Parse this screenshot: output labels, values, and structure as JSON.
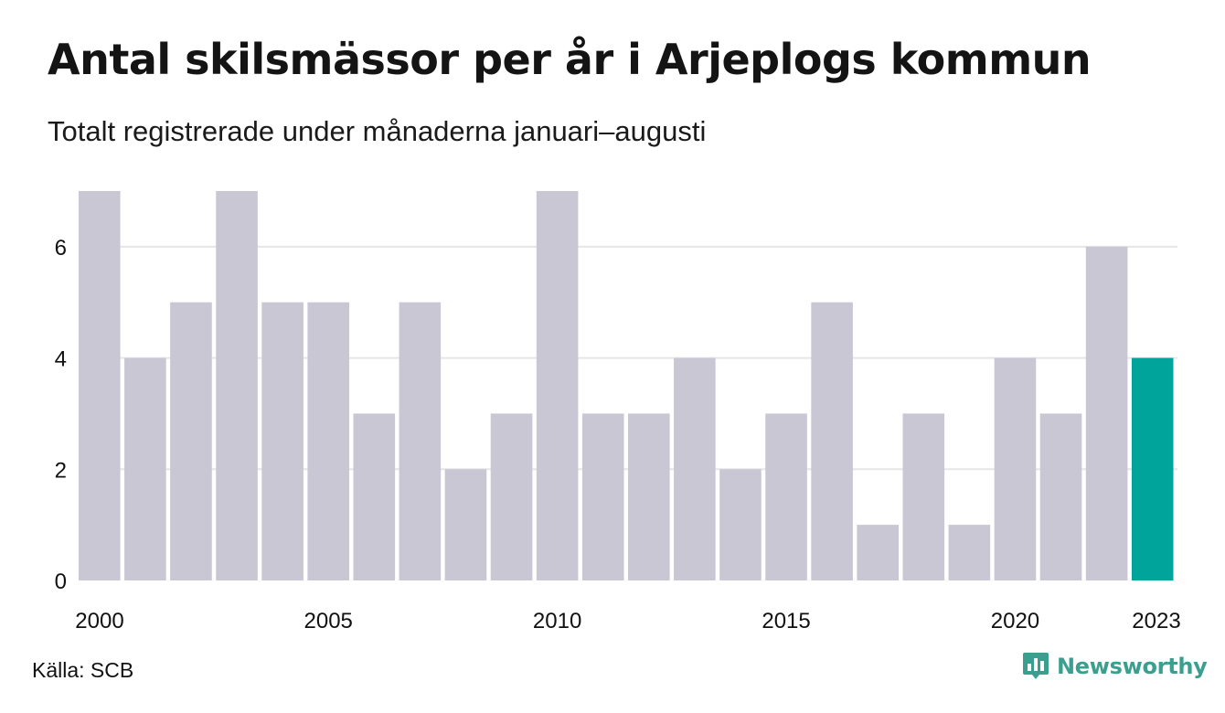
{
  "header": {
    "title": "Antal skilsmässor per år i Arjeplogs kommun",
    "subtitle": "Totalt registrerade under månaderna januari–augusti"
  },
  "footer": {
    "source": "Källa: SCB",
    "brand": "Newsworthy",
    "brand_icon": "newsworthy-logo-icon"
  },
  "colors": {
    "bar": "#c8c7d3",
    "highlight": "#00a49a",
    "grid": "#e6e6e6",
    "axis_text": "#111111",
    "brand": "#3a9f8f"
  },
  "chart_data": {
    "type": "bar",
    "title": "Antal skilsmässor per år i Arjeplogs kommun",
    "subtitle": "Totalt registrerade under månaderna januari–augusti",
    "categories": [
      "2000",
      "2001",
      "2002",
      "2003",
      "2004",
      "2005",
      "2006",
      "2007",
      "2008",
      "2009",
      "2010",
      "2011",
      "2012",
      "2013",
      "2014",
      "2015",
      "2016",
      "2017",
      "2018",
      "2019",
      "2020",
      "2021",
      "2022",
      "2023"
    ],
    "values": [
      7,
      4,
      5,
      7,
      5,
      5,
      3,
      5,
      2,
      3,
      7,
      3,
      3,
      4,
      2,
      3,
      5,
      1,
      3,
      1,
      4,
      3,
      6,
      4
    ],
    "highlight_category": "2023",
    "x_tick_labels": [
      "2000",
      "2005",
      "2010",
      "2015",
      "2020",
      "2023"
    ],
    "y_ticks": [
      0,
      2,
      4,
      6
    ],
    "ylim": [
      0,
      7
    ],
    "grid": true,
    "xlabel": "",
    "ylabel": ""
  }
}
